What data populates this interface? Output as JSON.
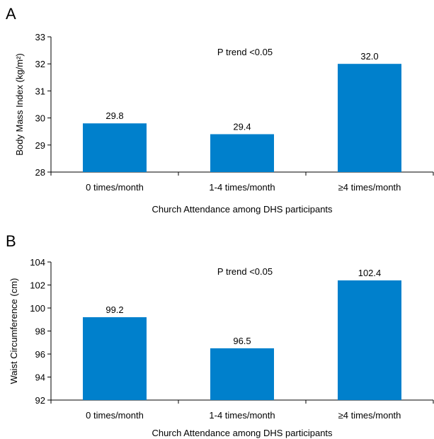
{
  "chart_data": [
    {
      "panel_label": "A",
      "type": "bar",
      "categories": [
        "0 times/month",
        "1-4 times/month",
        "≥4 times/month"
      ],
      "values": [
        29.8,
        29.4,
        32.0
      ],
      "data_labels": [
        "29.8",
        "29.4",
        "32.0"
      ],
      "annotation": "P trend <0.05",
      "xlabel": "Church Attendance among DHS participants",
      "ylabel": "Body Mass Index (kg/m²)",
      "ylim": [
        28,
        33
      ],
      "yticks": [
        28,
        29,
        30,
        31,
        32,
        33
      ],
      "bar_color": "#0080cc",
      "grid": false
    },
    {
      "panel_label": "B",
      "type": "bar",
      "categories": [
        "0 times/month",
        "1-4 times/month",
        "≥4 times/month"
      ],
      "values": [
        99.2,
        96.5,
        102.4
      ],
      "data_labels": [
        "99.2",
        "96.5",
        "102.4"
      ],
      "annotation": "P trend <0.05",
      "xlabel": "Church Attendance among DHS participants",
      "ylabel": "Waist Circumference (cm)",
      "ylim": [
        92,
        104
      ],
      "yticks": [
        92,
        94,
        96,
        98,
        100,
        102,
        104
      ],
      "bar_color": "#0080cc",
      "grid": false
    }
  ]
}
